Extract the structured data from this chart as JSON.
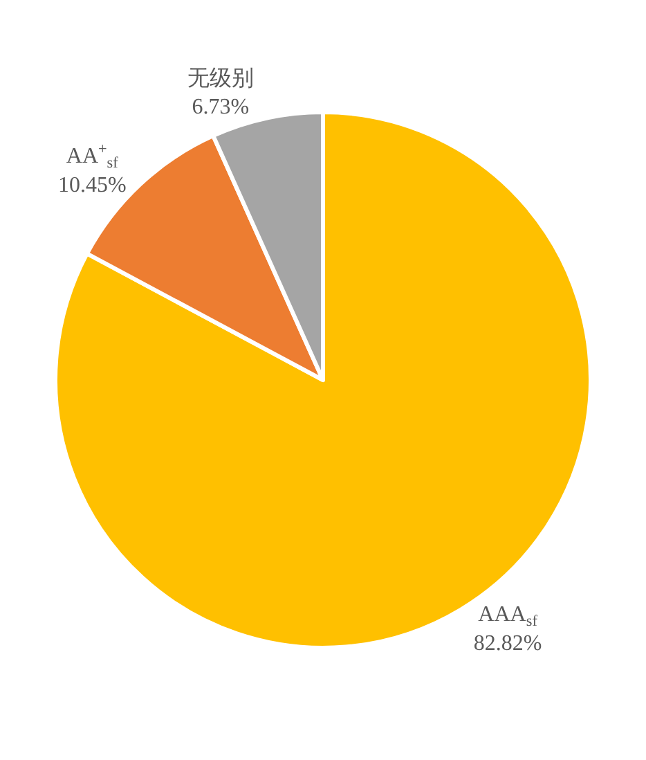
{
  "chart_data": {
    "type": "pie",
    "categories": [
      "AAA$_{sf}$",
      "AA$^{+}$$_{sf}$",
      "无级别"
    ],
    "values": [
      82.82,
      10.45,
      6.73
    ],
    "colors": [
      "#ffc000",
      "#ed7d31",
      "#a5a5a5"
    ],
    "value_labels": [
      "82.82%",
      "10.45%",
      "6.73%"
    ],
    "legend": false
  }
}
